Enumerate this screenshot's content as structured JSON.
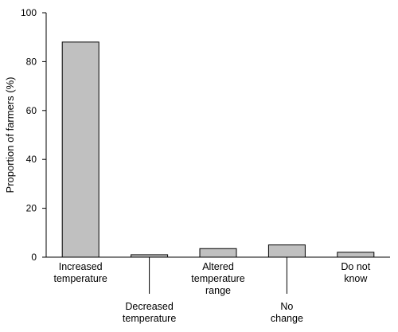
{
  "chart_data": {
    "type": "bar",
    "title": "",
    "xlabel": "",
    "ylabel": "Proportion of farmers (%)",
    "ylim": [
      0,
      100
    ],
    "yticks": [
      0,
      20,
      40,
      60,
      80,
      100
    ],
    "grid": false,
    "bar_color": "#c0c0c0",
    "categories": [
      {
        "lines": [
          "Increased",
          "temperature"
        ],
        "value": 88
      },
      {
        "lines": [
          "Decreased",
          "temperature"
        ],
        "value": 1
      },
      {
        "lines": [
          "Altered",
          "temperature",
          "range"
        ],
        "value": 3.5
      },
      {
        "lines": [
          "No",
          "change"
        ],
        "value": 5
      },
      {
        "lines": [
          "Do not",
          "know"
        ],
        "value": 2
      }
    ]
  }
}
